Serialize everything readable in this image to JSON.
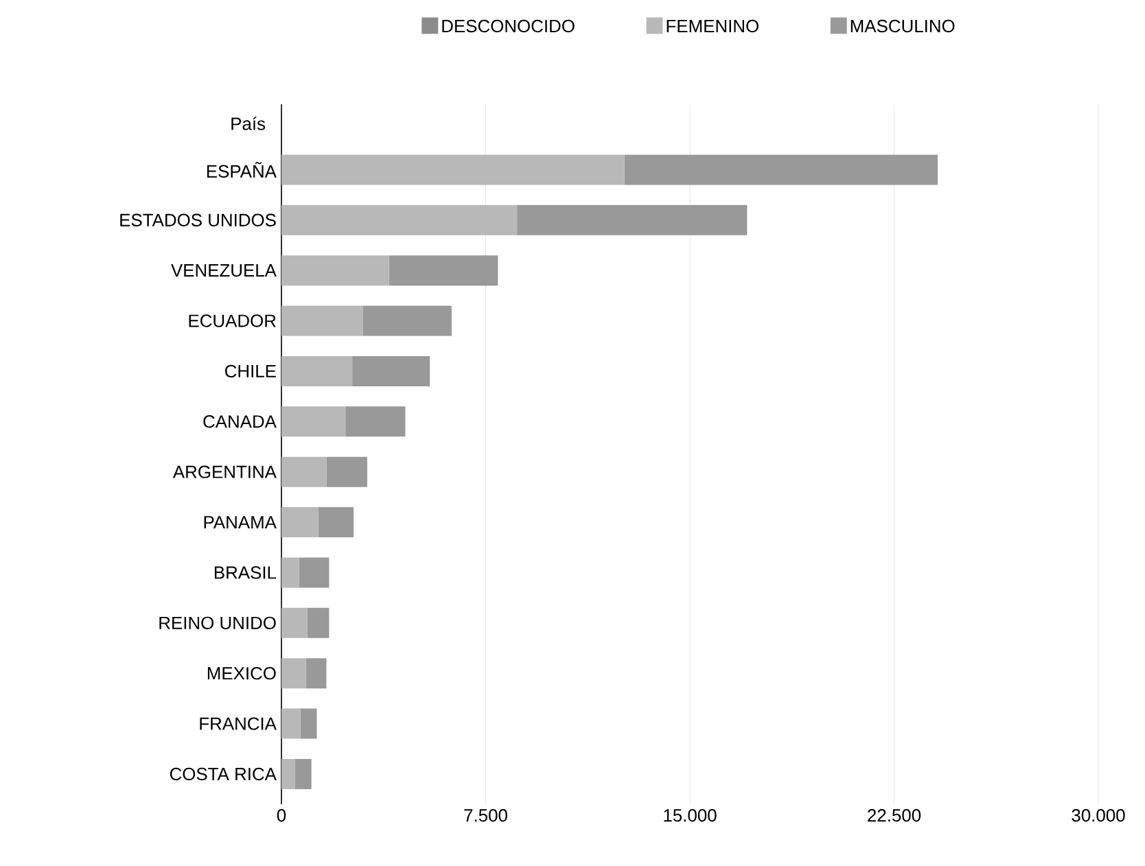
{
  "chart_data": {
    "type": "bar",
    "orientation": "horizontal",
    "stacked": true,
    "ylabel": "País",
    "categories": [
      "ESPAÑA",
      "ESTADOS UNIDOS",
      "VENEZUELA",
      "ECUADOR",
      "CHILE",
      "CANADA",
      "ARGENTINA",
      "PANAMA",
      "BRASIL",
      "REINO UNIDO",
      "MEXICO",
      "FRANCIA",
      "COSTA RICA"
    ],
    "series": [
      {
        "name": "DESCONOCIDO",
        "color": "#8c8c8c",
        "values": [
          0,
          0,
          0,
          0,
          0,
          0,
          0,
          0,
          0,
          0,
          0,
          0,
          0
        ]
      },
      {
        "name": "FEMENINO",
        "color": "#b8b8b8",
        "values": [
          12600,
          8650,
          3950,
          3000,
          2600,
          2350,
          1650,
          1350,
          650,
          950,
          900,
          700,
          500
        ]
      },
      {
        "name": "MASCULINO",
        "color": "#999999",
        "values": [
          11500,
          8450,
          4000,
          3250,
          2850,
          2200,
          1500,
          1300,
          1100,
          800,
          750,
          600,
          600
        ]
      }
    ],
    "xlim": [
      0,
      30000
    ],
    "xticks": [
      {
        "value": 0,
        "label": "0"
      },
      {
        "value": 7500,
        "label": "7.500"
      },
      {
        "value": 15000,
        "label": "15.000"
      },
      {
        "value": 22500,
        "label": "22.500"
      },
      {
        "value": 30000,
        "label": "30.000"
      }
    ],
    "grid": "x",
    "legend": "top"
  }
}
